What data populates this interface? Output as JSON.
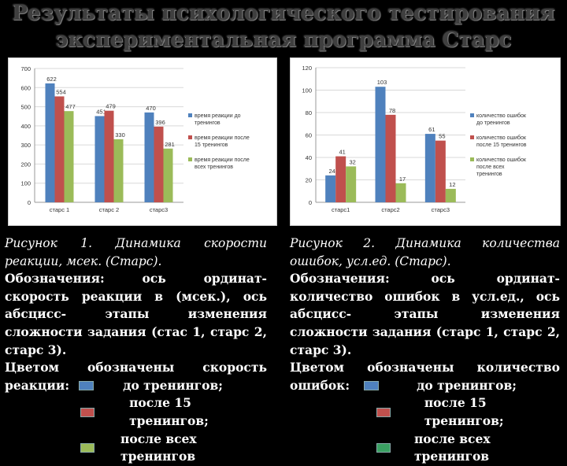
{
  "slide": {
    "title_line1": "Результаты психологического тестирования",
    "title_line2": "экспериментальная программа Старс"
  },
  "colors": {
    "series1": "#4f81bd",
    "series2": "#c0504d",
    "series3": "#9bbb59"
  },
  "chart_data": [
    {
      "type": "bar",
      "categories": [
        "старс 1",
        "старс 2",
        "старс3"
      ],
      "ylim": [
        0,
        700
      ],
      "yticks": [
        0,
        100,
        200,
        300,
        400,
        500,
        600,
        700
      ],
      "grid": true,
      "legend_position": "right",
      "series": [
        {
          "name": "время реакции до тренингов",
          "values": [
            622,
            451,
            470
          ],
          "labels": [
            "622",
            "451",
            "470"
          ]
        },
        {
          "name": "время реакции после 15 тренингов",
          "values": [
            554,
            479,
            396
          ],
          "labels": [
            "554",
            "479",
            "396"
          ]
        },
        {
          "name": "время реакции после всех тренингов",
          "values": [
            477,
            330,
            281
          ],
          "labels": [
            "477",
            "330",
            "281"
          ]
        }
      ]
    },
    {
      "type": "bar",
      "categories": [
        "старс1",
        "старс2",
        "старс3"
      ],
      "ylim": [
        0,
        120
      ],
      "yticks": [
        0,
        20,
        40,
        60,
        80,
        100,
        120
      ],
      "grid": true,
      "legend_position": "right",
      "series": [
        {
          "name": "количество ошибок до тренингов",
          "values": [
            24,
            103,
            61
          ],
          "labels": [
            "24",
            "103",
            "61"
          ]
        },
        {
          "name": "количество ошибок после 15 тренингов",
          "values": [
            41,
            78,
            55
          ],
          "labels": [
            "41",
            "78",
            "55"
          ]
        },
        {
          "name": "количество ошибок после всех тренингов",
          "values": [
            32,
            17,
            12
          ],
          "labels": [
            "32",
            "17",
            "12"
          ]
        }
      ]
    }
  ],
  "captions": {
    "left": {
      "title_a": "Рисунок 1. Динамика скорости",
      "title_b": "реакции, мсек. (Старс).",
      "body": "Обозначения: ось ординат- скорость реакции в (мсек.), ось абсцисс- этапы изменения сложности задания (стас 1, старс 2, старс 3).",
      "color_intro_a": "Цветом обозначены скорость",
      "color_intro_b": "реакции:",
      "legend": [
        "до тренингов;",
        "после 15 тренингов;",
        "после всех тренингов"
      ]
    },
    "right": {
      "title_a": "Рисунок 2. Динамика количества",
      "title_b": "ошибок, усл.ед. (Старс).",
      "body": "Обозначения: ось ординат- количество ошибок в усл.ед., ось абсцисс- этапы изменения сложности задания (старс 1, старс 2, старс 3).",
      "color_intro_a": "Цветом обозначены количество",
      "color_intro_b": "ошибок:",
      "legend": [
        "до тренингов;",
        "после 15 тренингов;",
        "после всех тренингов"
      ]
    }
  }
}
